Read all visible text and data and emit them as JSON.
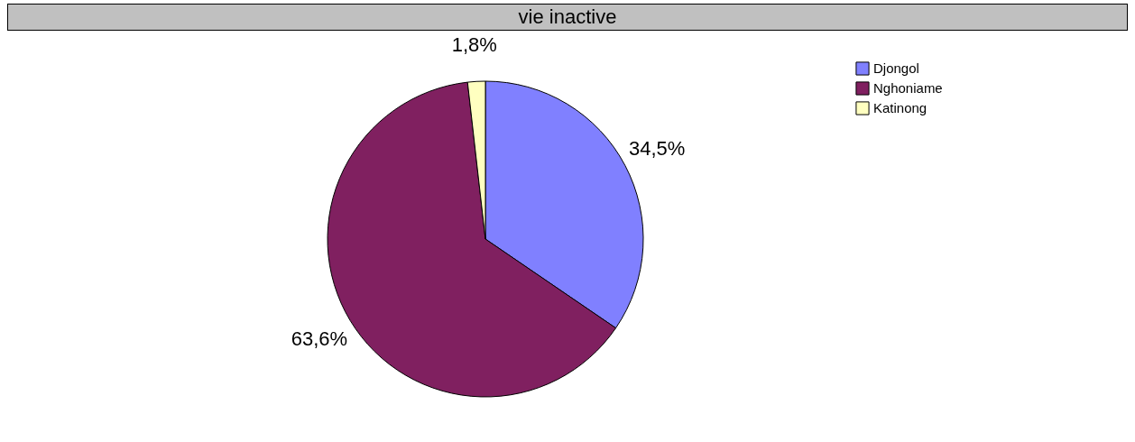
{
  "chart_data": {
    "type": "pie",
    "title": "vie inactive",
    "categories": [
      "Djongol",
      "Nghoniame",
      "Katinong"
    ],
    "values": [
      34.5,
      63.6,
      1.8
    ],
    "colors": [
      "#8080ff",
      "#802060",
      "#ffffc0"
    ],
    "value_labels": [
      "34,5%",
      "63,6%",
      "1,8%"
    ],
    "legend": "top right"
  }
}
